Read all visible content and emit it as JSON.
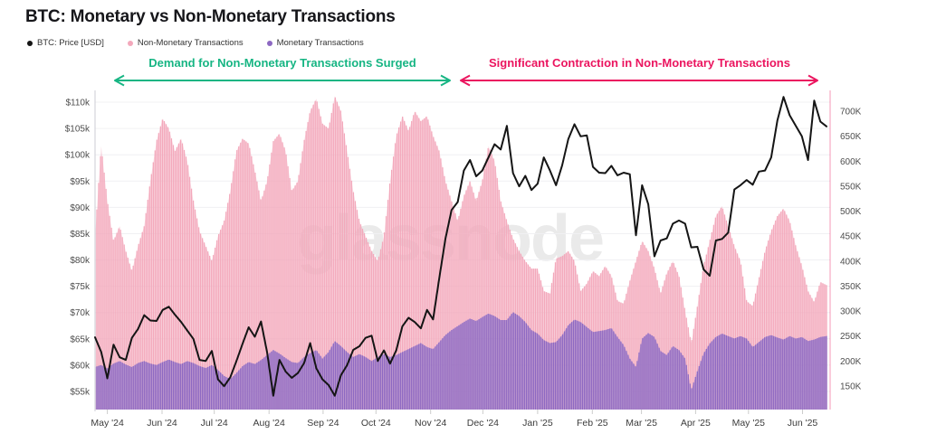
{
  "page": {
    "title": "BTC: Monetary vs Non-Monetary Transactions",
    "watermark": "glassnode"
  },
  "legend": [
    {
      "label": "BTC: Price [USD]",
      "color": "#141414"
    },
    {
      "label": "Non-Monetary Transactions",
      "color": "#f3a8bb"
    },
    {
      "label": "Monetary Transactions",
      "color": "#8d68c2"
    }
  ],
  "annotations": [
    {
      "text": "Demand for Non-Monetary Transactions Surged",
      "color": "#16b583"
    },
    {
      "text": "Significant Contraction in Non-Monetary Transactions",
      "color": "#eb155f"
    }
  ],
  "chart_data": {
    "type": "mixed",
    "title": "BTC: Monetary vs Non-Monetary Transactions",
    "grid": true,
    "legend_position": "top-left",
    "x_tick_labels": [
      "May '24",
      "Jun '24",
      "Jul '24",
      "Aug '24",
      "Sep '24",
      "Oct '24",
      "Nov '24",
      "Dec '24",
      "Jan '25",
      "Feb '25",
      "Mar '25",
      "Apr '25",
      "May '25",
      "Jun '25"
    ],
    "x_tick_pos": [
      2,
      10.9,
      19.4,
      28.3,
      37.1,
      45.7,
      54.6,
      63.1,
      72,
      80.9,
      88.9,
      97.7,
      106.3,
      115.1
    ],
    "x_unit": "time, ~3.5-day sampling from late Apr 2024 to mid Jun 2025",
    "left_axis": {
      "unit": "USD (thousands)",
      "min": 55,
      "max": 110,
      "tick_labels": [
        "$110k",
        "$105k",
        "$100k",
        "$95k",
        "$90k",
        "$85k",
        "$80k",
        "$75k",
        "$70k",
        "$65k",
        "$60k",
        "$55k"
      ],
      "tick_values": [
        110,
        105,
        100,
        95,
        90,
        85,
        80,
        75,
        70,
        65,
        60,
        55
      ]
    },
    "right_axis": {
      "unit": "transactions (thousands)",
      "min": 150,
      "max": 700,
      "tick_labels": [
        "700K",
        "650K",
        "600K",
        "550K",
        "500K",
        "450K",
        "400K",
        "350K",
        "300K",
        "250K",
        "200K",
        "150K"
      ],
      "tick_values": [
        700,
        650,
        600,
        550,
        500,
        450,
        400,
        350,
        300,
        250,
        200,
        150
      ]
    },
    "series": [
      {
        "name": "BTC: Price [USD]",
        "type": "line",
        "axis": "left",
        "color": "#151515",
        "unit": "thousand USD",
        "values": [
          65.3,
          62.5,
          57.5,
          63.9,
          61.5,
          61.0,
          65.2,
          66.9,
          69.5,
          68.5,
          68.4,
          70.5,
          71.1,
          69.6,
          68.2,
          66.6,
          65.0,
          61.0,
          60.8,
          62.7,
          57.3,
          56.0,
          57.7,
          60.8,
          64.1,
          67.2,
          65.4,
          68.3,
          62.4,
          54.2,
          61.0,
          58.8,
          57.6,
          58.5,
          60.4,
          64.2,
          59.4,
          57.3,
          56.2,
          54.2,
          58.1,
          60.0,
          62.9,
          63.6,
          65.2,
          65.6,
          60.8,
          62.8,
          60.3,
          62.8,
          67.4,
          69.0,
          68.2,
          67.0,
          70.5,
          68.7,
          76.5,
          84.0,
          89.5,
          91.0,
          97.0,
          99.0,
          95.9,
          97.0,
          99.5,
          102.0,
          101.0,
          105.5,
          96.5,
          94.0,
          96.0,
          93.3,
          94.5,
          99.5,
          97.0,
          94.2,
          98.0,
          103.0,
          105.8,
          103.5,
          103.7,
          97.7,
          96.6,
          96.5,
          97.9,
          96.1,
          96.6,
          96.3,
          84.7,
          94.2,
          90.6,
          80.7,
          83.7,
          84.1,
          86.9,
          87.5,
          86.9,
          82.4,
          82.5,
          78.2,
          77.0,
          83.7,
          84.0,
          85.2,
          93.4,
          94.2,
          95.2,
          94.3,
          96.8,
          97.0,
          99.5,
          106.5,
          111.0,
          107.5,
          105.5,
          103.5,
          99.0,
          110.3,
          106.3,
          105.4
        ]
      },
      {
        "name": "Non-Monetary Transactions",
        "type": "bar",
        "axis": "right",
        "color": "#f3a8bb",
        "unit": "thousand transactions",
        "values": [
          450,
          630,
          520,
          440,
          470,
          420,
          380,
          430,
          470,
          560,
          640,
          685,
          665,
          620,
          645,
          600,
          520,
          460,
          430,
          400,
          450,
          480,
          540,
          620,
          645,
          635,
          580,
          520,
          560,
          640,
          655,
          620,
          540,
          560,
          640,
          700,
          725,
          675,
          665,
          730,
          700,
          620,
          540,
          480,
          450,
          420,
          400,
          450,
          560,
          650,
          690,
          660,
          700,
          680,
          690,
          650,
          620,
          560,
          520,
          480,
          530,
          560,
          520,
          560,
          630,
          600,
          520,
          480,
          445,
          420,
          400,
          385,
          385,
          340,
          335,
          405,
          410,
          420,
          400,
          340,
          355,
          380,
          370,
          390,
          370,
          320,
          315,
          360,
          400,
          440,
          420,
          385,
          335,
          375,
          400,
          370,
          300,
          235,
          310,
          390,
          440,
          490,
          510,
          470,
          430,
          400,
          320,
          310,
          365,
          420,
          460,
          490,
          505,
          480,
          430,
          390,
          340,
          318,
          358,
          352
        ]
      },
      {
        "name": "Monetary Transactions",
        "type": "bar",
        "axis": "right",
        "color": "#8d68c2",
        "unit": "thousand transactions",
        "values": [
          188,
          192,
          185,
          195,
          200,
          193,
          188,
          196,
          200,
          195,
          192,
          198,
          203,
          198,
          194,
          200,
          196,
          190,
          186,
          192,
          182,
          170,
          164,
          176,
          190,
          198,
          194,
          202,
          212,
          222,
          215,
          206,
          198,
          196,
          208,
          216,
          222,
          205,
          218,
          240,
          230,
          218,
          208,
          214,
          208,
          200,
          208,
          214,
          208,
          212,
          218,
          224,
          230,
          236,
          228,
          224,
          238,
          252,
          262,
          270,
          278,
          285,
          280,
          288,
          295,
          290,
          282,
          282,
          298,
          290,
          278,
          262,
          255,
          242,
          236,
          238,
          252,
          272,
          283,
          278,
          268,
          258,
          260,
          262,
          266,
          248,
          232,
          205,
          188,
          245,
          256,
          248,
          220,
          212,
          230,
          222,
          205,
          142,
          180,
          215,
          235,
          248,
          255,
          250,
          245,
          250,
          245,
          228,
          238,
          248,
          252,
          247,
          243,
          250,
          245,
          248,
          240,
          243,
          248,
          250
        ]
      }
    ]
  }
}
